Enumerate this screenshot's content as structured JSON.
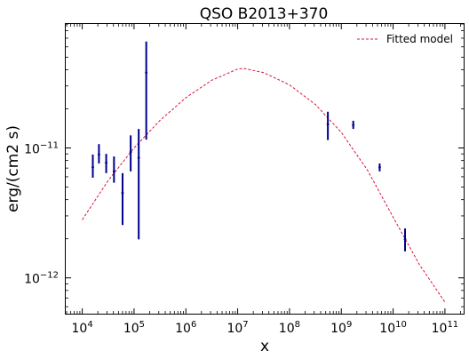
{
  "chart_data": {
    "type": "scatter",
    "title": "QSO B2013+370",
    "xlabel": "x",
    "ylabel": "erg/(cm2 s)",
    "xscale": "log",
    "yscale": "log",
    "xlim": [
      4800.0,
      230000000000.0
    ],
    "ylim": [
      5.3e-13,
      9e-11
    ],
    "grid": false,
    "legend_position": "top-right",
    "x_ticks": [
      {
        "value": 10000.0,
        "base": "10",
        "exp": "4"
      },
      {
        "value": 100000.0,
        "base": "10",
        "exp": "5"
      },
      {
        "value": 1000000.0,
        "base": "10",
        "exp": "6"
      },
      {
        "value": 10000000.0,
        "base": "10",
        "exp": "7"
      },
      {
        "value": 100000000.0,
        "base": "10",
        "exp": "8"
      },
      {
        "value": 1000000000.0,
        "base": "10",
        "exp": "9"
      },
      {
        "value": 10000000000.0,
        "base": "10",
        "exp": "10"
      },
      {
        "value": 100000000000.0,
        "base": "10",
        "exp": "11"
      }
    ],
    "y_ticks": [
      {
        "value": 1e-12,
        "base": "10",
        "exp": "−12"
      },
      {
        "value": 1e-11,
        "base": "10",
        "exp": "−11"
      }
    ],
    "data_color": "#00008b",
    "model_color": "#dc143c",
    "points": [
      {
        "x": 16000.0,
        "y": 7.1e-12,
        "ylo": 5.9e-12,
        "yhi": 8.9e-12
      },
      {
        "x": 21000.0,
        "y": 8.9e-12,
        "ylo": 7.6e-12,
        "yhi": 1.07e-11
      },
      {
        "x": 29000.0,
        "y": 7.7e-12,
        "ylo": 6.4e-12,
        "yhi": 9e-12
      },
      {
        "x": 41000.0,
        "y": 6.6e-12,
        "ylo": 5.4e-12,
        "yhi": 8.6e-12
      },
      {
        "x": 60000.0,
        "y": 4.5e-12,
        "ylo": 2.55e-12,
        "yhi": 6.4e-12
      },
      {
        "x": 86000.0,
        "y": 9.3e-12,
        "ylo": 6.6e-12,
        "yhi": 1.25e-11
      },
      {
        "x": 123000.0,
        "y": 8.4e-12,
        "ylo": 1.98e-12,
        "yhi": 1.4e-11
      },
      {
        "x": 172000.0,
        "y": 3.8e-11,
        "ylo": 1.16e-11,
        "yhi": 6.6e-11
      },
      {
        "x": 550000000.0,
        "y": 1.52e-11,
        "ylo": 1.15e-11,
        "yhi": 1.9e-11
      },
      {
        "x": 1700000000.0,
        "y": 1.5e-11,
        "ylo": 1.4e-11,
        "yhi": 1.62e-11
      },
      {
        "x": 5500000000.0,
        "y": 7.1e-12,
        "ylo": 6.6e-12,
        "yhi": 7.6e-12
      },
      {
        "x": 17000000000.0,
        "y": 1.98e-12,
        "ylo": 1.6e-12,
        "yhi": 2.4e-12
      }
    ],
    "model": {
      "name": "Fitted model",
      "x": [
        10000.0,
        31600.0,
        100000.0,
        316000.0,
        1000000.0,
        3160000.0,
        10000000.0,
        13000000.0,
        31600000.0,
        100000000.0,
        316000000.0,
        1000000000.0,
        3160000000.0,
        10000000000.0,
        31600000000.0,
        100000000000.0
      ],
      "y": [
        2.8e-12,
        5.6e-12,
        1e-11,
        1.63e-11,
        2.44e-11,
        3.32e-11,
        4.05e-11,
        4.1e-11,
        3.8e-11,
        3.06e-11,
        2.16e-11,
        1.32e-11,
        6.8e-12,
        2.93e-12,
        1.28e-12,
        6.5e-13
      ]
    }
  }
}
